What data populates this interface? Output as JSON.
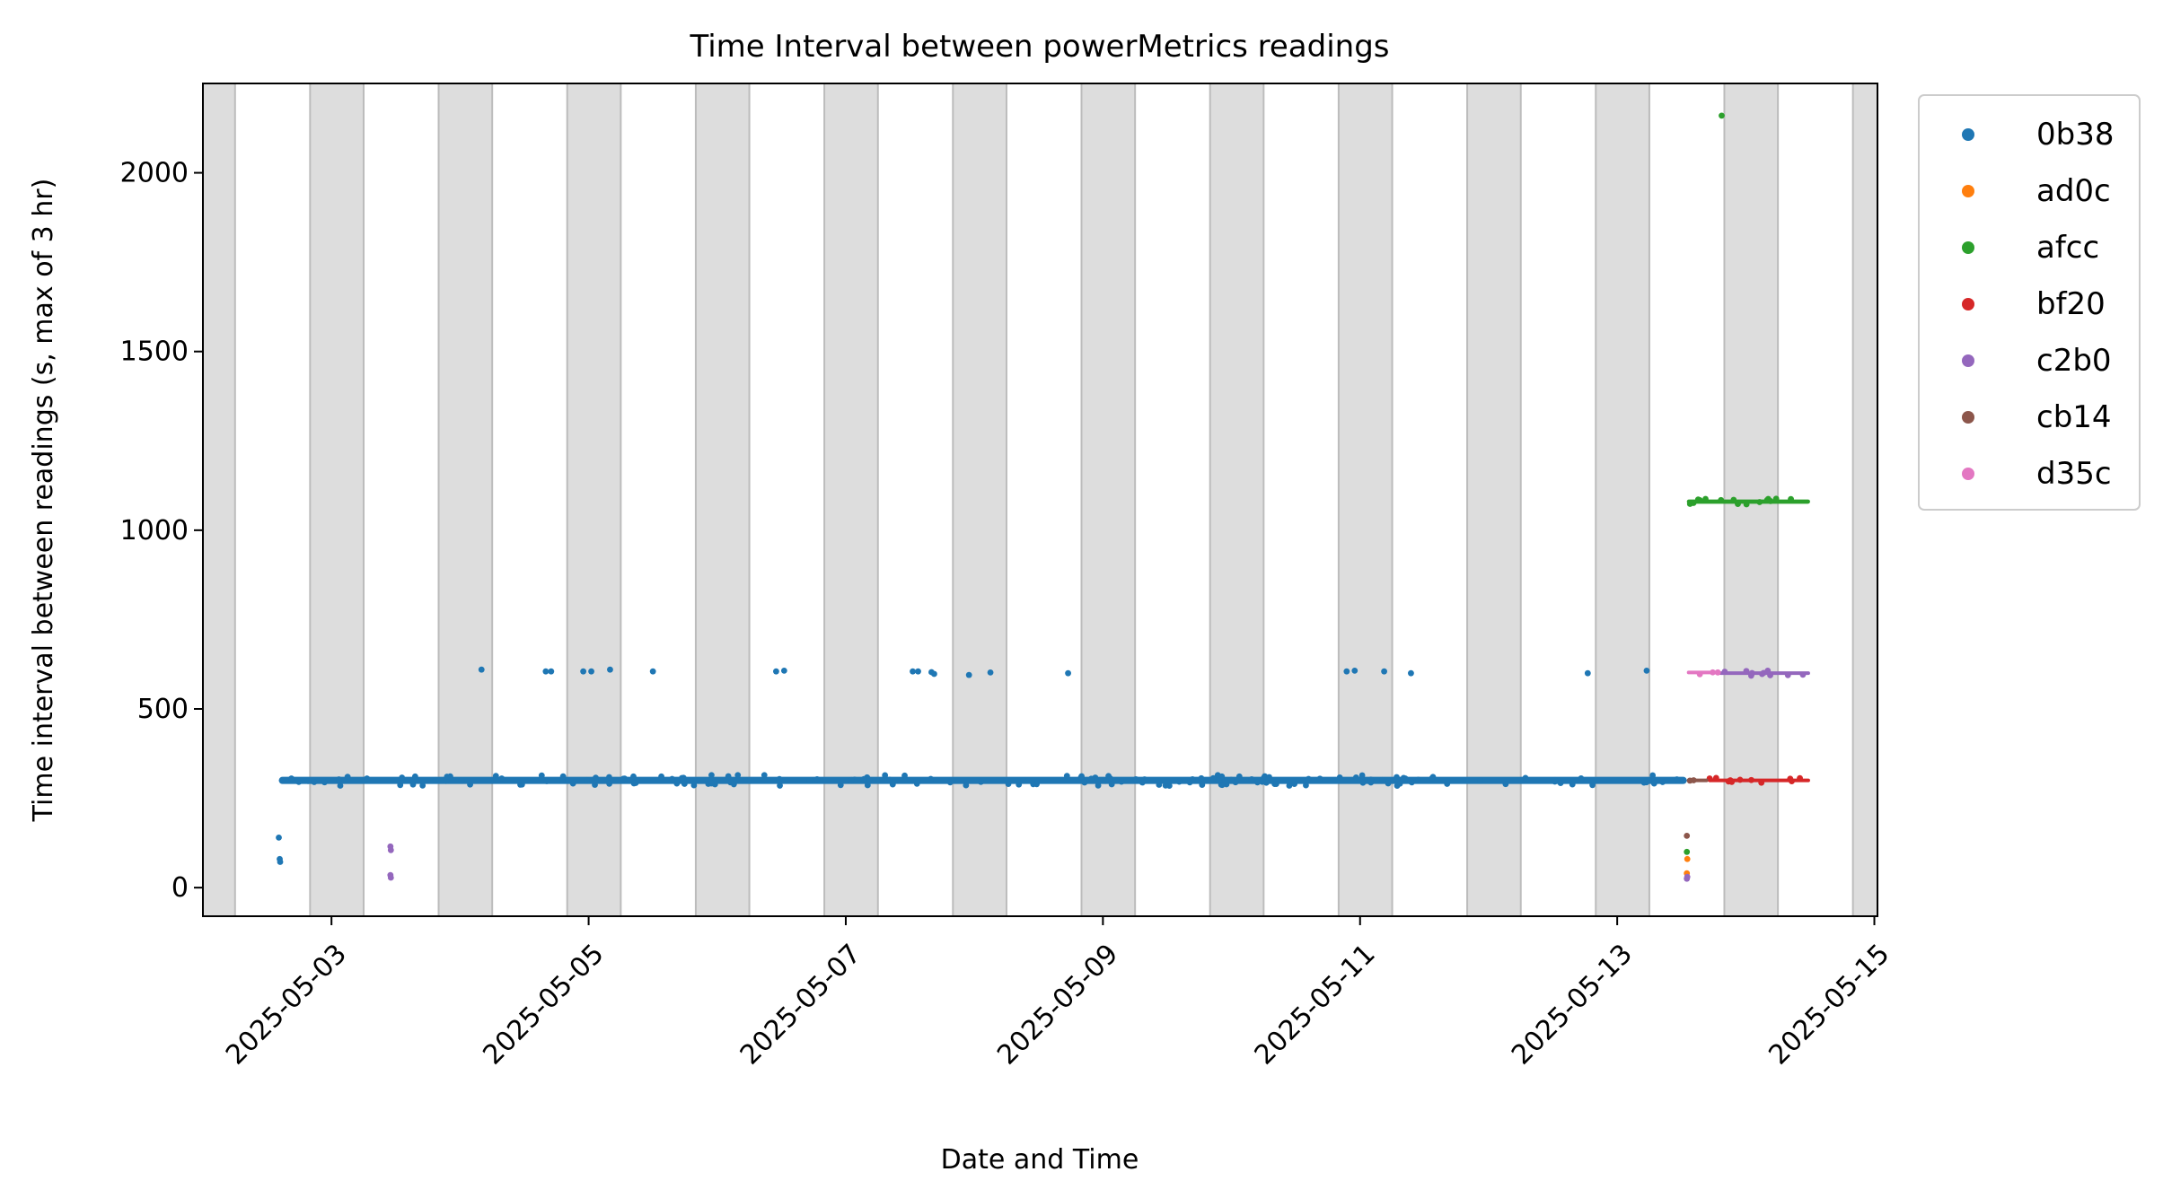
{
  "chart_data": {
    "type": "scatter",
    "title": "Time Interval between powerMetrics readings",
    "xlabel": "Date and Time",
    "ylabel": "Time interval between readings (s, max of 3 hr)",
    "xlim": [
      "2025-05-02 00:00",
      "2025-05-15 00:35"
    ],
    "ylim": [
      -80,
      2250
    ],
    "x_ticks": [
      "2025-05-03",
      "2025-05-05",
      "2025-05-07",
      "2025-05-09",
      "2025-05-11",
      "2025-05-13",
      "2025-05-15"
    ],
    "y_ticks": [
      0,
      500,
      1000,
      1500,
      2000
    ],
    "grid": false,
    "legend_position": "outside-right-top",
    "night_shading": {
      "color": "#dddddd",
      "intervals": [
        [
          "2025-05-01 20:00",
          "2025-05-02 06:00"
        ],
        [
          "2025-05-02 20:00",
          "2025-05-03 06:00"
        ],
        [
          "2025-05-03 20:00",
          "2025-05-04 06:00"
        ],
        [
          "2025-05-04 20:00",
          "2025-05-05 06:00"
        ],
        [
          "2025-05-05 20:00",
          "2025-05-06 06:00"
        ],
        [
          "2025-05-06 20:00",
          "2025-05-07 06:00"
        ],
        [
          "2025-05-07 20:00",
          "2025-05-08 06:00"
        ],
        [
          "2025-05-08 20:00",
          "2025-05-09 06:00"
        ],
        [
          "2025-05-09 20:00",
          "2025-05-10 06:00"
        ],
        [
          "2025-05-10 20:00",
          "2025-05-11 06:00"
        ],
        [
          "2025-05-11 20:00",
          "2025-05-12 06:00"
        ],
        [
          "2025-05-12 20:00",
          "2025-05-13 06:00"
        ],
        [
          "2025-05-13 20:00",
          "2025-05-14 06:00"
        ],
        [
          "2025-05-14 20:00",
          "2025-05-15 06:00"
        ]
      ]
    },
    "series": [
      {
        "name": "0b38",
        "color": "#1f77b4",
        "band": {
          "x_start": "2025-05-02 14:10",
          "x_end": "2025-05-13 13:00",
          "y": 300,
          "spread": 10
        },
        "points": [
          [
            "2025-05-02 14:10",
            140
          ],
          [
            "2025-05-02 14:20",
            80
          ],
          [
            "2025-05-02 14:25",
            72
          ],
          [
            "2025-05-04 04:00",
            610
          ],
          [
            "2025-05-04 16:00",
            605
          ],
          [
            "2025-05-04 17:00",
            605
          ],
          [
            "2025-05-04 23:00",
            605
          ],
          [
            "2025-05-05 00:30",
            605
          ],
          [
            "2025-05-05 04:00",
            610
          ],
          [
            "2025-05-05 12:00",
            605
          ],
          [
            "2025-05-06 11:00",
            605
          ],
          [
            "2025-05-06 12:30",
            607
          ],
          [
            "2025-05-07 12:30",
            605
          ],
          [
            "2025-05-07 13:30",
            605
          ],
          [
            "2025-05-07 16:00",
            603
          ],
          [
            "2025-05-07 16:30",
            598
          ],
          [
            "2025-05-07 23:00",
            595
          ],
          [
            "2025-05-08 03:00",
            602
          ],
          [
            "2025-05-08 17:30",
            600
          ],
          [
            "2025-05-10 21:30",
            605
          ],
          [
            "2025-05-10 23:00",
            607
          ],
          [
            "2025-05-11 04:30",
            605
          ],
          [
            "2025-05-11 09:30",
            600
          ],
          [
            "2025-05-12 18:30",
            600
          ],
          [
            "2025-05-13 05:30",
            607
          ]
        ]
      },
      {
        "name": "ad0c",
        "color": "#ff7f0e",
        "points": [
          [
            "2025-05-13 13:00",
            40
          ],
          [
            "2025-05-13 13:05",
            80
          ]
        ]
      },
      {
        "name": "afcc",
        "color": "#2ca02c",
        "band": {
          "x_start": "2025-05-13 13:00",
          "x_end": "2025-05-14 12:00",
          "y": 1080,
          "spread": 6
        },
        "points": [
          [
            "2025-05-13 19:30",
            2160
          ],
          [
            "2025-05-13 13:00",
            100
          ]
        ]
      },
      {
        "name": "bf20",
        "color": "#d62728",
        "band": {
          "x_start": "2025-05-13 17:00",
          "x_end": "2025-05-14 12:00",
          "y": 300,
          "spread": 4
        },
        "points": []
      },
      {
        "name": "c2b0",
        "color": "#9467bd",
        "band": {
          "x_start": "2025-05-13 19:00",
          "x_end": "2025-05-14 12:00",
          "y": 600,
          "spread": 5
        },
        "points": [
          [
            "2025-05-03 11:00",
            115
          ],
          [
            "2025-05-03 11:05",
            105
          ],
          [
            "2025-05-03 11:00",
            35
          ],
          [
            "2025-05-03 11:05",
            28
          ],
          [
            "2025-05-13 13:00",
            25
          ],
          [
            "2025-05-13 13:05",
            30
          ]
        ]
      },
      {
        "name": "cb14",
        "color": "#8c564b",
        "band": {
          "x_start": "2025-05-13 13:00",
          "x_end": "2025-05-13 17:00",
          "y": 300,
          "spread": 4
        },
        "points": [
          [
            "2025-05-13 13:00",
            145
          ]
        ]
      },
      {
        "name": "d35c",
        "color": "#e377c2",
        "band": {
          "x_start": "2025-05-13 13:00",
          "x_end": "2025-05-13 19:00",
          "y": 602,
          "spread": 5
        },
        "points": []
      }
    ]
  }
}
